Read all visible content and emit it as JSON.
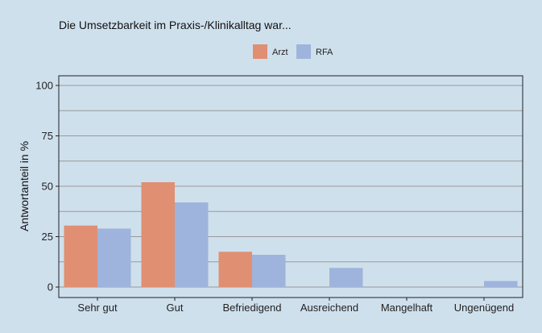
{
  "chart_data": {
    "type": "bar",
    "title": "Die Umsetzbarkeit im Praxis-/Klinikalltag war...",
    "ylabel": "Antwortanteil in %",
    "xlabel": "",
    "categories": [
      "Sehr gut",
      "Gut",
      "Befriedigend",
      "Ausreichend",
      "Mangelhaft",
      "Ungenügend"
    ],
    "series": [
      {
        "name": "Arzt",
        "color": "#e08f72",
        "values": [
          30.5,
          52,
          17.5,
          0,
          0,
          0
        ]
      },
      {
        "name": "RFA",
        "color": "#9fb4dc",
        "values": [
          29,
          42,
          16,
          9.5,
          0,
          3
        ]
      }
    ],
    "ylim": [
      0,
      100
    ],
    "yticks": [
      0,
      25,
      50,
      75,
      100
    ],
    "grid": true,
    "legend_position": "top-center",
    "background_color": "#cfe0ed"
  }
}
